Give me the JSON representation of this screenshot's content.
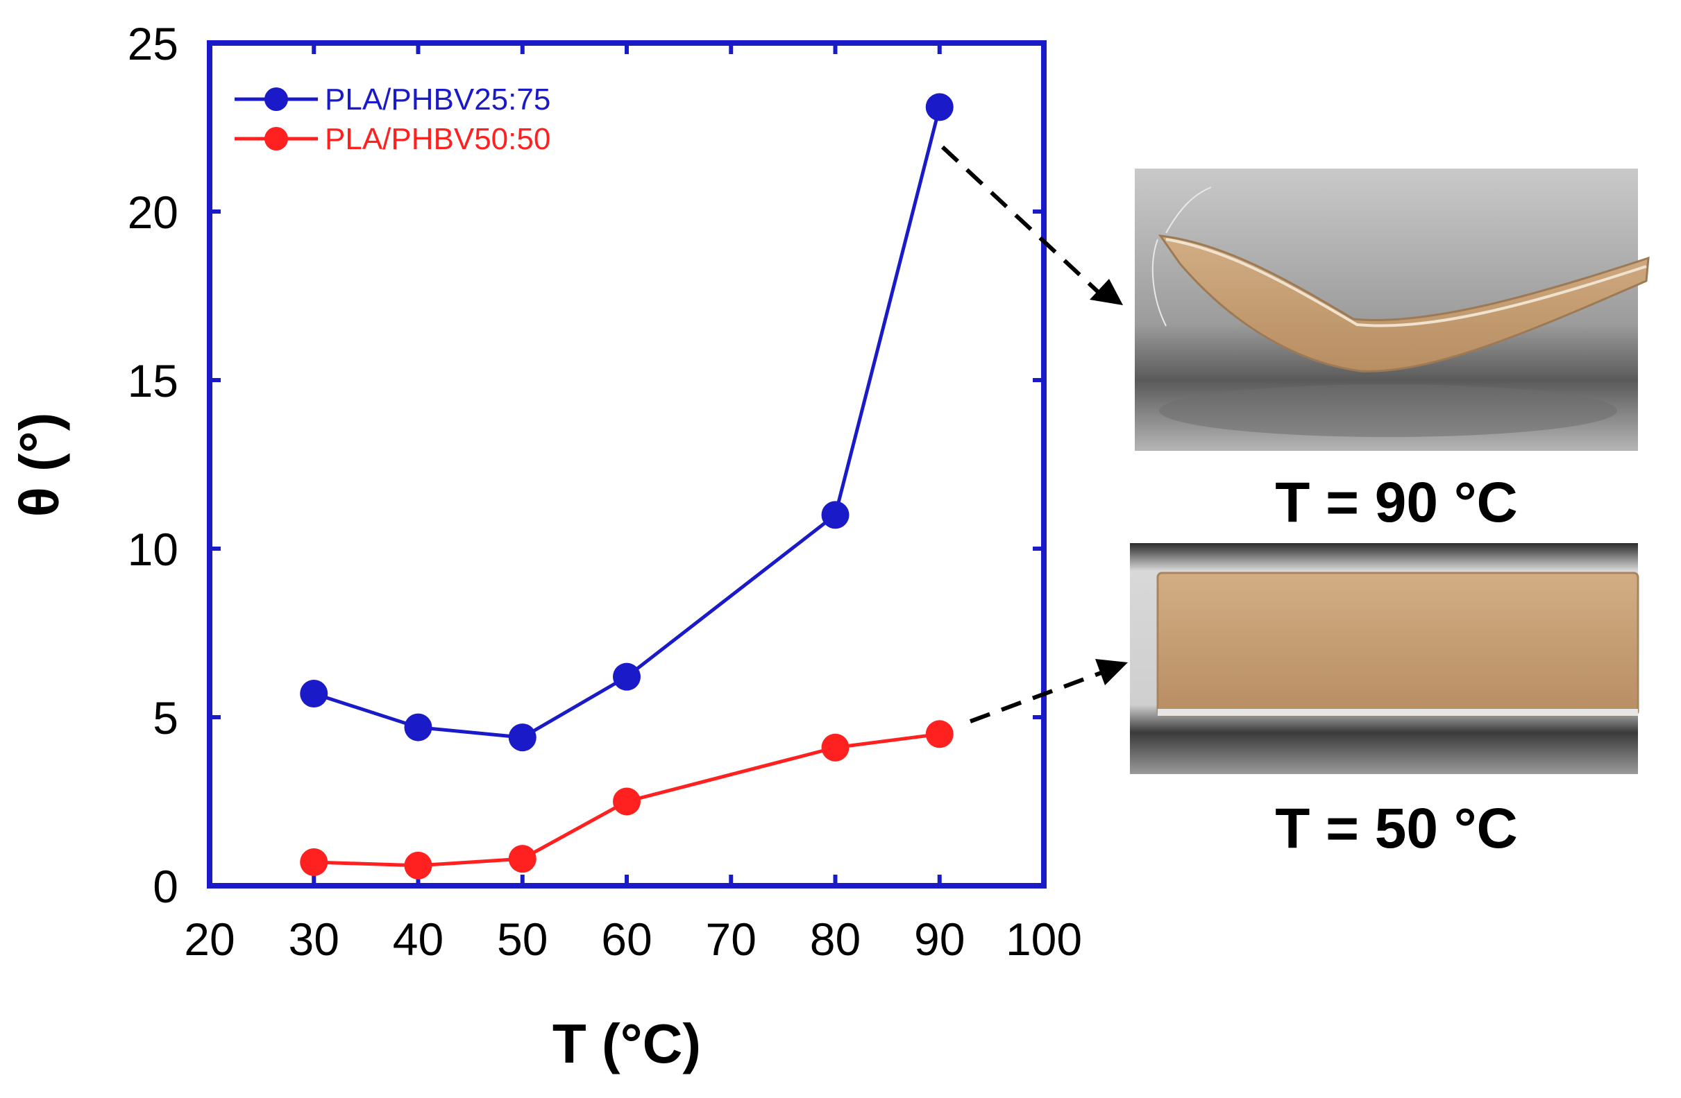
{
  "chart_data": {
    "type": "line",
    "xlabel": "T (°C)",
    "ylabel": "θ (°)",
    "xlim": [
      20,
      100
    ],
    "ylim": [
      0,
      25
    ],
    "xticks": [
      20,
      30,
      40,
      50,
      60,
      70,
      80,
      90,
      100
    ],
    "yticks": [
      0,
      5,
      10,
      15,
      20,
      25
    ],
    "grid": false,
    "legend_position": "top-left",
    "series": [
      {
        "name": "PLA/PHBV25:75",
        "color": "#1a1ac8",
        "x": [
          30,
          40,
          50,
          60,
          80,
          90
        ],
        "y": [
          5.7,
          4.7,
          4.4,
          6.2,
          11.0,
          23.1
        ]
      },
      {
        "name": "PLA/PHBV50:50",
        "color": "#ff2020",
        "x": [
          30,
          40,
          50,
          60,
          80,
          90
        ],
        "y": [
          0.7,
          0.6,
          0.8,
          2.5,
          4.1,
          4.5
        ]
      }
    ],
    "axis_color": "#1a1ac8"
  },
  "photos": [
    {
      "caption": "T = 90 °C",
      "depicts": "curved-sample"
    },
    {
      "caption": "T = 50 °C",
      "depicts": "flat-sample"
    }
  ]
}
